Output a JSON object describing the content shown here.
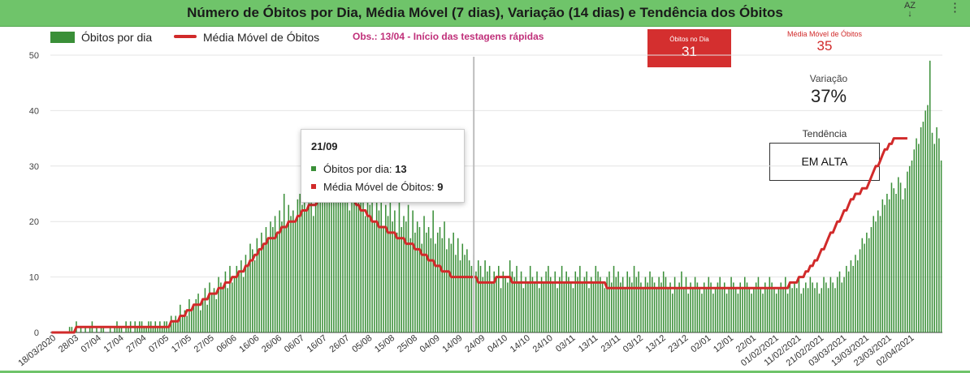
{
  "header": {
    "title": "Número de Óbitos por Dia, Média Móvel (7 dias), Variação (14 dias) e Tendência dos Óbitos",
    "sort_icon": "az-sort-icon",
    "sort_label": "AZ",
    "more_icon": "more-vert-icon",
    "colors": {
      "background": "#6fc46a"
    }
  },
  "legend": {
    "bars": "Óbitos por dia",
    "line": "Média Móvel de Óbitos"
  },
  "note": "Obs.: 13/04 - Início das testagens rápidas",
  "cards": {
    "obitos_dia": {
      "label": "Óbitos no Dia",
      "value": "31",
      "color": "#d42f2f"
    },
    "media_movel": {
      "label": "Média Móvel de Óbitos",
      "value": "35"
    },
    "variacao": {
      "label": "Variação",
      "value": "37%"
    },
    "tendencia": {
      "label": "Tendência",
      "value": "EM ALTA"
    }
  },
  "tooltip": {
    "date": "21/09",
    "bars_label": "Óbitos por dia:",
    "bars_value": "13",
    "line_label": "Média Móvel de Óbitos:",
    "line_value": "9"
  },
  "chart_data": {
    "type": "bar",
    "title": "Número de Óbitos por Dia, Média Móvel (7 dias), Variação (14 dias) e Tendência dos Óbitos",
    "ylim": [
      0,
      50
    ],
    "yticks": [
      0,
      10,
      20,
      30,
      40,
      50
    ],
    "grid": true,
    "legend_position": "top-left",
    "colors": {
      "bars": "#3a8f38",
      "line": "#d12a2a"
    },
    "x_tick_labels": [
      "18/03/2020",
      "28/03",
      "07/04",
      "17/04",
      "27/04",
      "07/05",
      "17/05",
      "27/05",
      "06/06",
      "16/06",
      "26/06",
      "06/07",
      "16/07",
      "26/07",
      "05/08",
      "15/08",
      "25/08",
      "04/09",
      "14/09",
      "24/09",
      "04/10",
      "14/10",
      "24/10",
      "03/11",
      "13/11",
      "23/11",
      "03/12",
      "13/12",
      "23/12",
      "02/01",
      "12/01",
      "22/01",
      "01/02/2021",
      "11/02/2021",
      "21/02/2021",
      "03/03/2021",
      "13/03/2021",
      "23/03/2021",
      "02/04/2021"
    ],
    "x_start": "18/03/2020",
    "highlight_date": "21/09",
    "series": [
      {
        "name": "Óbitos por dia",
        "type": "bar",
        "values": [
          0,
          0,
          0,
          0,
          0,
          0,
          0,
          0,
          1,
          1,
          0,
          2,
          0,
          1,
          0,
          1,
          0,
          1,
          2,
          0,
          1,
          0,
          1,
          1,
          0,
          0,
          1,
          0,
          1,
          2,
          1,
          1,
          0,
          2,
          1,
          2,
          0,
          2,
          1,
          2,
          2,
          1,
          1,
          2,
          2,
          1,
          2,
          1,
          2,
          1,
          2,
          2,
          1,
          3,
          2,
          3,
          2,
          5,
          3,
          4,
          3,
          6,
          4,
          5,
          6,
          7,
          4,
          6,
          8,
          5,
          9,
          7,
          8,
          6,
          10,
          9,
          8,
          11,
          8,
          12,
          9,
          10,
          12,
          11,
          13,
          10,
          14,
          12,
          16,
          15,
          13,
          17,
          15,
          18,
          16,
          19,
          17,
          20,
          19,
          21,
          18,
          22,
          20,
          25,
          19,
          23,
          21,
          22,
          20,
          24,
          25,
          23,
          26,
          22,
          24,
          28,
          21,
          25,
          27,
          24,
          30,
          26,
          28,
          25,
          29,
          27,
          31,
          24,
          28,
          30,
          26,
          29,
          22,
          27,
          25,
          30,
          24,
          26,
          28,
          21,
          25,
          23,
          27,
          20,
          24,
          22,
          26,
          19,
          23,
          21,
          25,
          20,
          22,
          18,
          24,
          19,
          21,
          20,
          23,
          17,
          22,
          18,
          20,
          19,
          16,
          21,
          18,
          19,
          17,
          22,
          16,
          18,
          19,
          17,
          20,
          15,
          17,
          16,
          18,
          14,
          17,
          13,
          16,
          14,
          15,
          13,
          12,
          14,
          11,
          13,
          12,
          10,
          13,
          11,
          12,
          9,
          11,
          10,
          12,
          8,
          11,
          10,
          9,
          13,
          11,
          10,
          12,
          9,
          11,
          8,
          10,
          9,
          12,
          10,
          9,
          11,
          8,
          10,
          9,
          11,
          12,
          10,
          9,
          11,
          8,
          10,
          12,
          9,
          11,
          10,
          9,
          8,
          11,
          10,
          12,
          9,
          10,
          11,
          8,
          10,
          9,
          12,
          11,
          10,
          9,
          8,
          10,
          11,
          9,
          12,
          10,
          11,
          9,
          10,
          8,
          11,
          10,
          9,
          12,
          10,
          11,
          9,
          8,
          10,
          9,
          11,
          10,
          9,
          8,
          10,
          9,
          11,
          10,
          8,
          9,
          7,
          10,
          8,
          9,
          11,
          8,
          10,
          7,
          9,
          8,
          10,
          9,
          8,
          7,
          9,
          8,
          10,
          9,
          7,
          8,
          9,
          10,
          8,
          9,
          7,
          8,
          10,
          9,
          8,
          7,
          9,
          8,
          10,
          9,
          8,
          7,
          8,
          9,
          10,
          8,
          7,
          9,
          8,
          10,
          9,
          8,
          7,
          8,
          9,
          8,
          10,
          7,
          9,
          8,
          9,
          8,
          10,
          7,
          8,
          9,
          8,
          10,
          9,
          8,
          9,
          7,
          8,
          10,
          9,
          8,
          10,
          9,
          8,
          10,
          11,
          9,
          10,
          12,
          11,
          13,
          12,
          14,
          13,
          15,
          17,
          16,
          18,
          17,
          19,
          21,
          20,
          22,
          21,
          24,
          23,
          25,
          24,
          27,
          26,
          25,
          28,
          27,
          24,
          26,
          29,
          30,
          31,
          33,
          35,
          34,
          37,
          38,
          40,
          41,
          49,
          36,
          34,
          37,
          35,
          31
        ]
      },
      {
        "name": "Média Móvel de Óbitos",
        "type": "line",
        "values": [
          0,
          0,
          0,
          0,
          0,
          0,
          0,
          0,
          0,
          0,
          0,
          1,
          1,
          1,
          1,
          1,
          1,
          1,
          1,
          1,
          1,
          1,
          1,
          1,
          1,
          1,
          1,
          1,
          1,
          1,
          1,
          1,
          1,
          1,
          1,
          1,
          1,
          1,
          1,
          1,
          1,
          1,
          1,
          1,
          1,
          1,
          1,
          1,
          1,
          1,
          1,
          1,
          1,
          2,
          2,
          2,
          2,
          3,
          3,
          3,
          4,
          4,
          4,
          5,
          5,
          5,
          5,
          6,
          6,
          6,
          7,
          7,
          7,
          7,
          8,
          8,
          8,
          9,
          9,
          9,
          10,
          10,
          10,
          11,
          11,
          11,
          12,
          12,
          13,
          13,
          14,
          14,
          15,
          15,
          16,
          16,
          17,
          17,
          17,
          17,
          18,
          18,
          19,
          19,
          19,
          20,
          20,
          20,
          20,
          21,
          21,
          22,
          22,
          22,
          23,
          23,
          23,
          23,
          24,
          24,
          24,
          25,
          25,
          25,
          25,
          26,
          26,
          26,
          26,
          25,
          25,
          25,
          24,
          24,
          24,
          23,
          23,
          22,
          22,
          22,
          21,
          21,
          20,
          20,
          20,
          19,
          19,
          19,
          19,
          18,
          18,
          18,
          18,
          17,
          17,
          17,
          17,
          16,
          16,
          16,
          16,
          15,
          15,
          15,
          14,
          14,
          14,
          13,
          13,
          13,
          12,
          12,
          12,
          11,
          11,
          11,
          11,
          10,
          10,
          10,
          10,
          10,
          10,
          10,
          10,
          10,
          10,
          10,
          10,
          9,
          9,
          9,
          9,
          9,
          9,
          9,
          9,
          10,
          10,
          10,
          10,
          10,
          10,
          10,
          9,
          9,
          9,
          9,
          9,
          9,
          9,
          9,
          9,
          9,
          9,
          9,
          9,
          9,
          9,
          9,
          9,
          9,
          9,
          9,
          9,
          9,
          9,
          9,
          9,
          9,
          9,
          9,
          9,
          9,
          9,
          9,
          9,
          9,
          9,
          9,
          9,
          9,
          9,
          9,
          9,
          9,
          8,
          8,
          8,
          8,
          8,
          8,
          8,
          8,
          8,
          8,
          8,
          8,
          8,
          8,
          8,
          8,
          8,
          8,
          8,
          8,
          8,
          8,
          8,
          8,
          8,
          8,
          8,
          8,
          8,
          8,
          8,
          8,
          8,
          8,
          8,
          8,
          8,
          8,
          8,
          8,
          8,
          8,
          8,
          8,
          8,
          8,
          8,
          8,
          8,
          8,
          8,
          8,
          8,
          8,
          8,
          8,
          8,
          8,
          8,
          8,
          8,
          8,
          8,
          8,
          8,
          8,
          8,
          8,
          8,
          8,
          8,
          8,
          8,
          8,
          8,
          8,
          8,
          8,
          8,
          8,
          8,
          9,
          9,
          9,
          9,
          10,
          10,
          10,
          11,
          11,
          12,
          12,
          13,
          13,
          14,
          15,
          15,
          16,
          17,
          18,
          18,
          19,
          20,
          20,
          21,
          22,
          22,
          23,
          24,
          24,
          25,
          25,
          25,
          26,
          26,
          26,
          27,
          28,
          29,
          30,
          30,
          31,
          32,
          33,
          33,
          34,
          34,
          35,
          35,
          35,
          35,
          35,
          35,
          35
        ]
      }
    ]
  }
}
